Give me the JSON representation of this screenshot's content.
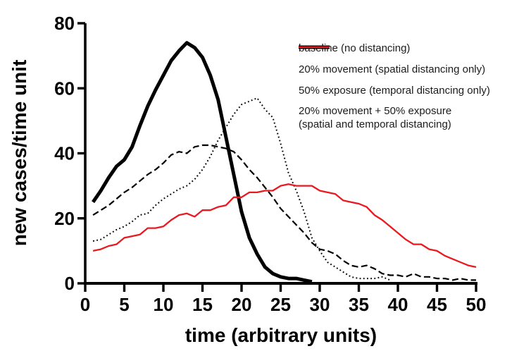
{
  "chart_data": {
    "type": "line",
    "title": "",
    "xlabel": "time (arbitrary units)",
    "ylabel": "new cases/time unit",
    "xlim": [
      0,
      50
    ],
    "ylim": [
      0,
      80
    ],
    "x_ticks": [
      0,
      5,
      10,
      15,
      20,
      25,
      30,
      35,
      40,
      45,
      50
    ],
    "y_ticks": [
      0,
      20,
      40,
      60,
      80
    ],
    "grid": false,
    "legend_position": "top-right",
    "axis_color": "#000000",
    "series": [
      {
        "name": "baseline (no distancing)",
        "color": "#000000",
        "line_style": "solid",
        "stroke_width": 5,
        "dash": "",
        "x_start": 1,
        "values": [
          25,
          28.5,
          32.5,
          36,
          38,
          42,
          48.5,
          54.5,
          59.5,
          64,
          68.5,
          71.5,
          74,
          72.5,
          69.5,
          64,
          56.5,
          45,
          33.5,
          22,
          14,
          9,
          5,
          3,
          2,
          1.5,
          1.5,
          1,
          0.5
        ]
      },
      {
        "name": "20% movement (spatial distancing only)",
        "color": "#000000",
        "line_style": "dashed",
        "stroke_width": 2.2,
        "dash": "9,4.5",
        "x_start": 1,
        "values": [
          21,
          22.5,
          24,
          26,
          28,
          29.5,
          31.5,
          33.5,
          35,
          37,
          39.5,
          40.5,
          40,
          42,
          42.5,
          42.5,
          42,
          41.5,
          40.5,
          38,
          35,
          32.5,
          29.5,
          26.5,
          23,
          20.5,
          18,
          15.5,
          12.5,
          10.5,
          10,
          9,
          7,
          5.5,
          5,
          5.5,
          4.5,
          3,
          2.5,
          2.5,
          2,
          3,
          2,
          2,
          1.5,
          1.5,
          1,
          1.5,
          1,
          1
        ]
      },
      {
        "name": "50% exposure (temporal distancing only)",
        "color": "#000000",
        "line_style": "dotted",
        "stroke_width": 2,
        "dash": "1.8,3.4",
        "x_start": 1,
        "values": [
          13,
          13.5,
          15,
          16.5,
          17.5,
          19,
          21,
          21.5,
          24,
          26,
          27.5,
          29,
          30,
          32,
          35,
          39,
          44,
          48,
          52,
          55,
          56,
          57,
          53.5,
          51,
          43,
          34,
          28.5,
          22,
          14,
          10,
          6.5,
          5,
          3.5,
          2,
          1.5,
          1.5,
          1.5,
          2,
          1
        ]
      },
      {
        "name": "20% movement + 50% exposure",
        "name_line2": "(spatial and temporal distancing)",
        "color": "#e8191f",
        "line_style": "solid",
        "stroke_width": 2.3,
        "dash": "",
        "x_start": 1,
        "values": [
          10,
          10.5,
          11.5,
          12,
          14,
          14.5,
          15,
          17,
          17,
          17.5,
          19.5,
          21,
          21.5,
          20.5,
          22.5,
          22.5,
          23.5,
          24,
          26.5,
          26.5,
          28,
          28,
          28.5,
          28.5,
          30,
          30.5,
          30,
          30,
          30,
          28.5,
          28,
          27.5,
          25.5,
          25,
          24.5,
          23.5,
          21,
          19.5,
          17.5,
          15.5,
          13.5,
          12,
          12,
          10.5,
          10,
          8.5,
          7.5,
          6.5,
          5.5,
          5
        ]
      }
    ]
  }
}
